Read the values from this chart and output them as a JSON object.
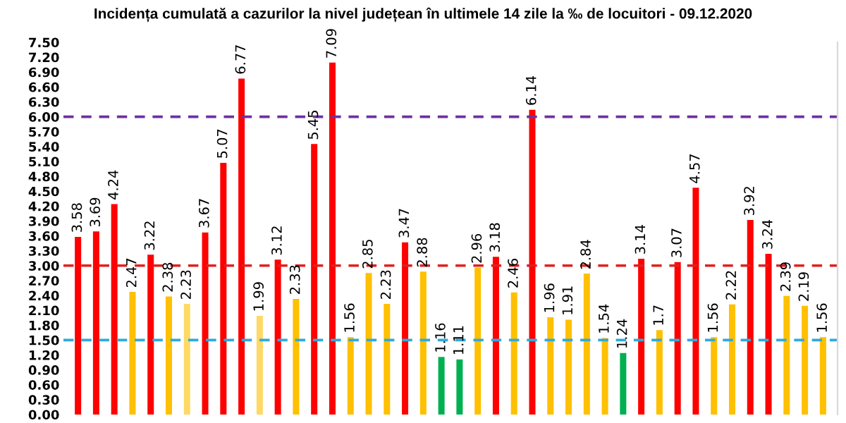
{
  "chart_data": {
    "type": "bar",
    "title": "Incidența cumulată a cazurilor la nivel județean în ultimele 14 zile la ‰ de locuitori - 09.12.2020",
    "categories": [
      null,
      null,
      null,
      null,
      null,
      null,
      null,
      null,
      null,
      null,
      null,
      null,
      null,
      null,
      null,
      null,
      null,
      null,
      null,
      null,
      null,
      null,
      null,
      null,
      null,
      null,
      null,
      null,
      null,
      null,
      null,
      null,
      null,
      null,
      null,
      null,
      null,
      null,
      null,
      null,
      null,
      null
    ],
    "values": [
      3.58,
      3.69,
      4.24,
      2.47,
      3.22,
      2.38,
      2.23,
      3.67,
      5.07,
      6.77,
      1.99,
      3.12,
      2.33,
      5.45,
      7.09,
      1.56,
      2.85,
      2.23,
      3.47,
      2.88,
      1.16,
      1.11,
      2.96,
      3.18,
      2.46,
      6.14,
      1.96,
      1.91,
      2.84,
      1.54,
      1.24,
      3.14,
      1.7,
      3.07,
      4.57,
      1.56,
      2.22,
      3.92,
      3.24,
      2.39,
      2.19,
      1.56
    ],
    "colors": [
      "#ff0000",
      "#ff0000",
      "#ff0000",
      "#ffc000",
      "#ff0000",
      "#ffc000",
      "#ffd966",
      "#ff0000",
      "#ff0000",
      "#ff0000",
      "#ffd966",
      "#ff0000",
      "#ffc000",
      "#ff0000",
      "#ff0000",
      "#ffc000",
      "#ffc000",
      "#ffc000",
      "#ff0000",
      "#ffc000",
      "#00b050",
      "#00b050",
      "#ffc000",
      "#ff0000",
      "#ffc000",
      "#ff0000",
      "#ffc000",
      "#ffc000",
      "#ffc000",
      "#ffc000",
      "#00b050",
      "#ff0000",
      "#ffc000",
      "#ff0000",
      "#ff0000",
      "#ffc000",
      "#ffc000",
      "#ff0000",
      "#ff0000",
      "#ffc000",
      "#ffc000",
      "#ffc000"
    ],
    "ylim": [
      0,
      7.5
    ],
    "yticks": [
      {
        "value": 0,
        "label": "0.00"
      },
      {
        "value": 0.3,
        "label": "0.30"
      },
      {
        "value": 0.6,
        "label": "0.60"
      },
      {
        "value": 0.9,
        "label": "0.90"
      },
      {
        "value": 1.2,
        "label": "1.20"
      },
      {
        "value": 1.5,
        "label": "1.50"
      },
      {
        "value": 1.8,
        "label": "1.80"
      },
      {
        "value": 2.1,
        "label": "2.10"
      },
      {
        "value": 2.4,
        "label": "2.40"
      },
      {
        "value": 2.7,
        "label": "2.70"
      },
      {
        "value": 3.0,
        "label": "3.00"
      },
      {
        "value": 3.3,
        "label": "3.30"
      },
      {
        "value": 3.6,
        "label": "3.60"
      },
      {
        "value": 3.9,
        "label": "3.90"
      },
      {
        "value": 4.2,
        "label": "4.20"
      },
      {
        "value": 4.5,
        "label": "4.50"
      },
      {
        "value": 4.8,
        "label": "4.80"
      },
      {
        "value": 5.1,
        "label": "5.10"
      },
      {
        "value": 5.4,
        "label": "5.40"
      },
      {
        "value": 5.7,
        "label": "5.70"
      },
      {
        "value": 6.0,
        "label": "6.00"
      },
      {
        "value": 6.3,
        "label": "6.30"
      },
      {
        "value": 6.6,
        "label": "6.60"
      },
      {
        "value": 6.9,
        "label": "6.90"
      },
      {
        "value": 7.2,
        "label": "7.20"
      },
      {
        "value": 7.5,
        "label": "7.50"
      }
    ],
    "ref_lines": [
      {
        "axis": "y",
        "value": 6.0,
        "color": "#7030a0",
        "line_style": "dashed"
      },
      {
        "axis": "y",
        "value": 3.0,
        "color": "#e02020",
        "line_style": "dashed"
      },
      {
        "axis": "y",
        "value": 1.5,
        "color": "#2eaadc",
        "line_style": "dashed"
      }
    ],
    "data_labels": true,
    "grid": false,
    "legend": false
  }
}
